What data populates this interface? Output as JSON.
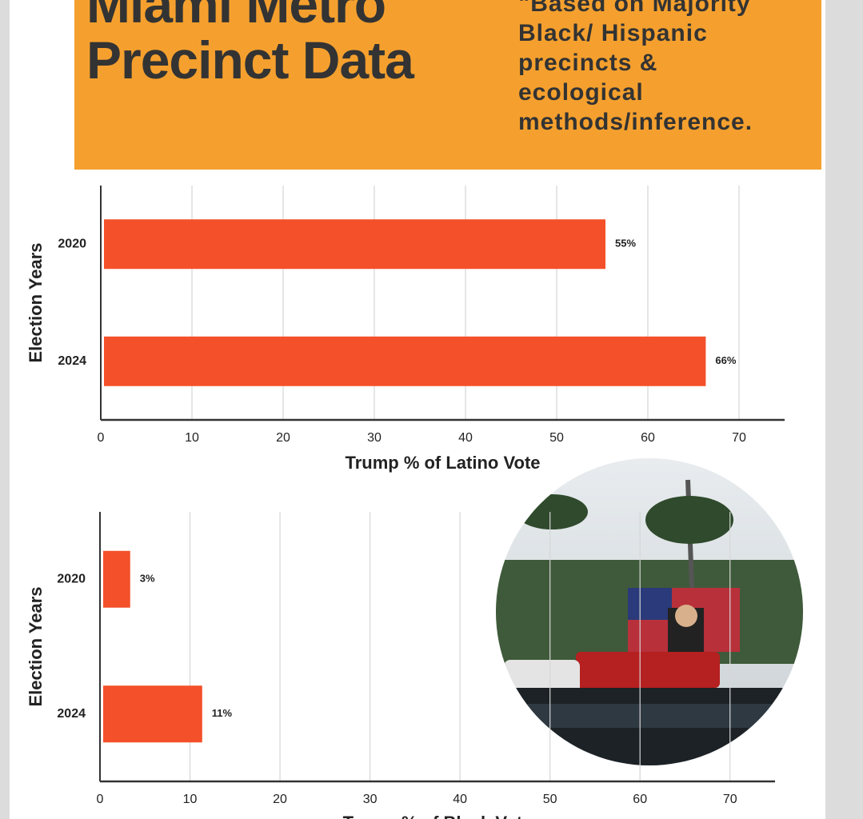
{
  "header": {
    "title": "Miami Metro Precinct Data",
    "note": "\"Based on Majority Black/ Hispanic precincts & ecological methods/inference."
  },
  "chart_data": [
    {
      "type": "bar",
      "orientation": "horizontal",
      "categories": [
        "2020",
        "2024"
      ],
      "values": [
        55,
        66
      ],
      "value_labels": [
        "55%",
        "66%"
      ],
      "color": "#f4502a",
      "xlim": [
        0,
        75
      ],
      "xticks": [
        0,
        10,
        20,
        30,
        40,
        50,
        60,
        70
      ],
      "grid": true,
      "x_label": "Trump % of Latino Vote",
      "y_label": "Election Years"
    },
    {
      "type": "bar",
      "orientation": "horizontal",
      "categories": [
        "2020",
        "2024"
      ],
      "values": [
        3,
        11
      ],
      "value_labels": [
        "3%",
        "11%"
      ],
      "color": "#f4502a",
      "xlim": [
        0,
        75
      ],
      "xticks": [
        0,
        10,
        20,
        30,
        40,
        50,
        60,
        70
      ],
      "grid": true,
      "x_label": "Trump % of Black Vote",
      "y_label": "Election Years"
    }
  ]
}
